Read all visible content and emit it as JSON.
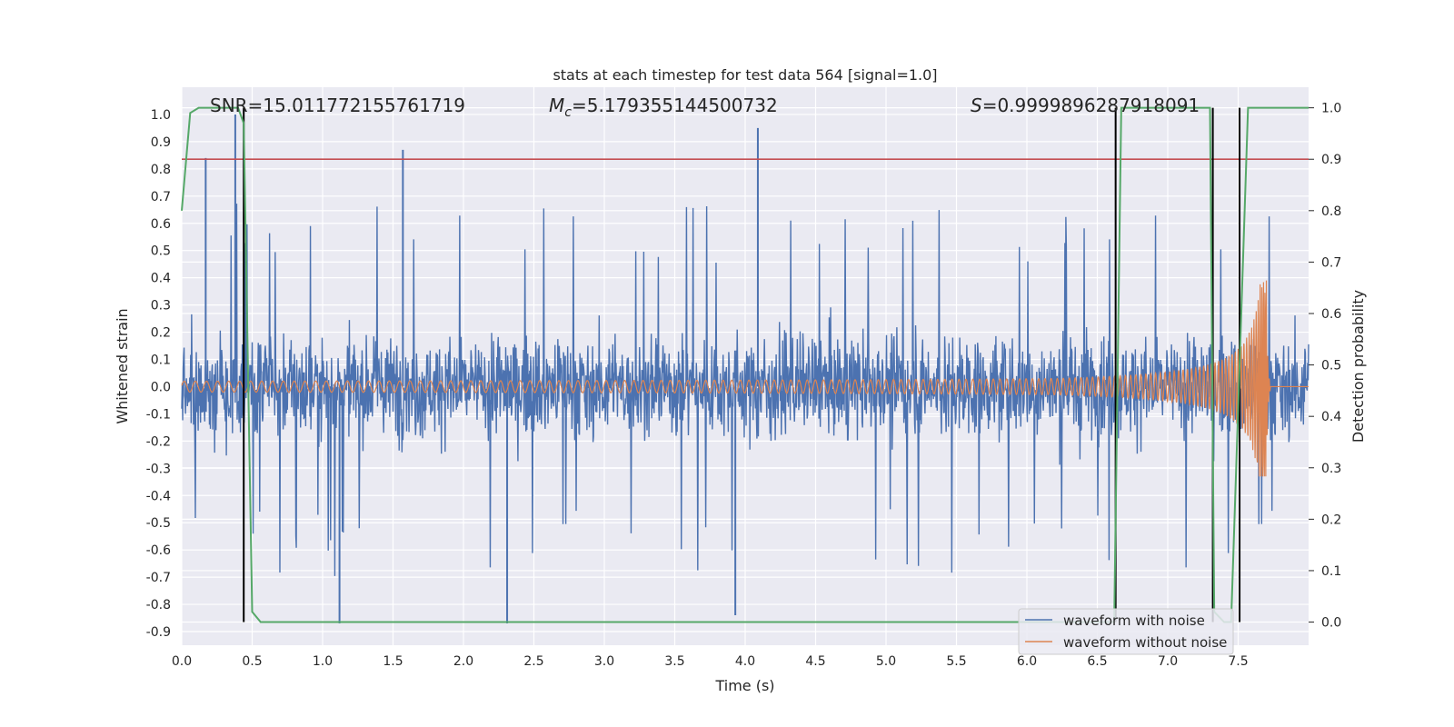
{
  "chart_data": {
    "type": "line",
    "title": "stats at each timestep for test data 564 [signal=1.0]",
    "xlabel": "Time (s)",
    "ylabel_left": "Whitened strain",
    "ylabel_right": "Detection probability",
    "xlim": [
      0.0,
      8.0
    ],
    "ylim_left": [
      -0.95,
      1.1
    ],
    "ylim_right": [
      -0.045,
      1.04
    ],
    "x_ticks": [
      "0.0",
      "0.5",
      "1.0",
      "1.5",
      "2.0",
      "2.5",
      "3.0",
      "3.5",
      "4.0",
      "4.5",
      "5.0",
      "5.5",
      "6.0",
      "6.5",
      "7.0",
      "7.5"
    ],
    "y_ticks_left": [
      "-0.9",
      "-0.8",
      "-0.7",
      "-0.6",
      "-0.5",
      "-0.4",
      "-0.3",
      "-0.2",
      "-0.1",
      "0.0",
      "0.1",
      "0.2",
      "0.3",
      "0.4",
      "0.5",
      "0.6",
      "0.7",
      "0.8",
      "0.9",
      "1.0"
    ],
    "y_ticks_right": [
      "0.0",
      "0.1",
      "0.2",
      "0.3",
      "0.4",
      "0.5",
      "0.6",
      "0.7",
      "0.8",
      "0.9",
      "1.0"
    ],
    "grid": true,
    "annotations": {
      "snr": "SNR=15.011772155761719",
      "mc_symbol": "M",
      "mc_sub": "c",
      "mc_value": "=5.179355144500732",
      "s_symbol": "S",
      "s_value": "=0.9999896287918091"
    },
    "legend": {
      "placement": "lower-right",
      "entries": [
        "waveform with noise",
        "waveform without noise"
      ]
    },
    "series": [
      {
        "name": "waveform with noise",
        "axis": "left",
        "color": "#4c72b0",
        "style": "noise",
        "envelope_typical": 0.4,
        "notable_peaks": [
          [
            0.17,
            0.84
          ],
          [
            0.38,
            1.0
          ],
          [
            1.57,
            0.87
          ],
          [
            4.09,
            0.95
          ],
          [
            1.12,
            -0.87
          ],
          [
            2.31,
            -0.87
          ],
          [
            3.93,
            -0.84
          ]
        ]
      },
      {
        "name": "waveform without noise",
        "axis": "left",
        "color": "#dd8452",
        "style": "chirp",
        "start_amplitude": 0.02,
        "peak_time": 7.7,
        "peak_max": 0.39,
        "peak_min": -0.33,
        "end_time": 7.72
      },
      {
        "axis": "right",
        "color": "#55a868",
        "points": [
          [
            0.0,
            0.8
          ],
          [
            0.06,
            0.99
          ],
          [
            0.12,
            1.0
          ],
          [
            0.4,
            1.0
          ],
          [
            0.44,
            0.97
          ],
          [
            0.5,
            0.02
          ],
          [
            0.56,
            0.0
          ],
          [
            6.62,
            0.0
          ],
          [
            6.67,
            1.0
          ],
          [
            7.3,
            1.0
          ],
          [
            7.33,
            0.02
          ],
          [
            7.4,
            0.0
          ],
          [
            7.45,
            0.0
          ],
          [
            7.57,
            1.0
          ],
          [
            8.0,
            1.0
          ]
        ]
      }
    ],
    "threshold": {
      "axis": "right",
      "value": 0.9,
      "color": "#c44e52"
    },
    "vertical_lines": {
      "color": "#000000",
      "x": [
        0.44,
        6.63,
        7.32,
        7.51
      ],
      "y_range": [
        0.0,
        1.0
      ]
    }
  }
}
